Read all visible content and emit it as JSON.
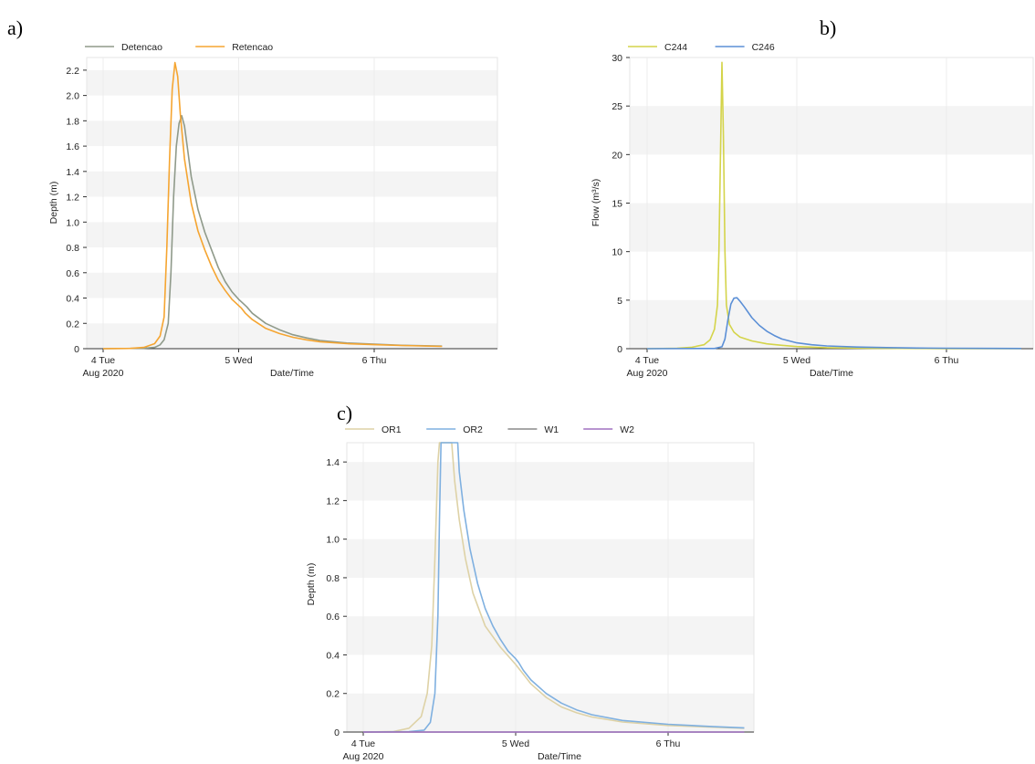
{
  "chart_data": [
    {
      "panel": "a)",
      "type": "line",
      "xlabel": "Date/Time",
      "ylabel": "Depth (m)",
      "x_ticks": [
        "4 Tue",
        "5 Wed",
        "6 Thu"
      ],
      "x_subtick": "Aug 2020",
      "x_range_days": [
        0,
        2.5
      ],
      "ylim": [
        0,
        2.3
      ],
      "y_ticks": [
        0,
        0.2,
        0.4,
        0.6,
        0.8,
        1.0,
        1.2,
        1.4,
        1.6,
        1.8,
        2.0,
        2.2
      ],
      "y_tick_labels": [
        "0",
        "0.2",
        "0.4",
        "0.6",
        "0.8",
        "1.0",
        "1.2",
        "1.4",
        "1.6",
        "1.8",
        "2.0",
        "2.2"
      ],
      "legend_position": "top-left",
      "series": [
        {
          "name": "Detencao",
          "color": "#8f9a8a",
          "points": [
            [
              0,
              0
            ],
            [
              0.3,
              0.003
            ],
            [
              0.38,
              0.01
            ],
            [
              0.42,
              0.03
            ],
            [
              0.45,
              0.07
            ],
            [
              0.48,
              0.2
            ],
            [
              0.5,
              0.6
            ],
            [
              0.52,
              1.2
            ],
            [
              0.54,
              1.6
            ],
            [
              0.56,
              1.78
            ],
            [
              0.58,
              1.84
            ],
            [
              0.6,
              1.76
            ],
            [
              0.62,
              1.6
            ],
            [
              0.65,
              1.36
            ],
            [
              0.7,
              1.1
            ],
            [
              0.75,
              0.92
            ],
            [
              0.8,
              0.78
            ],
            [
              0.85,
              0.64
            ],
            [
              0.9,
              0.53
            ],
            [
              0.95,
              0.45
            ],
            [
              1.0,
              0.39
            ],
            [
              1.03,
              0.36
            ],
            [
              1.06,
              0.33
            ],
            [
              1.1,
              0.28
            ],
            [
              1.2,
              0.2
            ],
            [
              1.3,
              0.15
            ],
            [
              1.4,
              0.11
            ],
            [
              1.5,
              0.085
            ],
            [
              1.6,
              0.065
            ],
            [
              1.8,
              0.045
            ],
            [
              2.0,
              0.035
            ],
            [
              2.2,
              0.027
            ],
            [
              2.5,
              0.02
            ]
          ]
        },
        {
          "name": "Retencao",
          "color": "#f5a531",
          "points": [
            [
              0,
              0
            ],
            [
              0.2,
              0.002
            ],
            [
              0.3,
              0.01
            ],
            [
              0.38,
              0.04
            ],
            [
              0.42,
              0.1
            ],
            [
              0.45,
              0.25
            ],
            [
              0.47,
              0.8
            ],
            [
              0.49,
              1.5
            ],
            [
              0.51,
              2.05
            ],
            [
              0.53,
              2.26
            ],
            [
              0.55,
              2.15
            ],
            [
              0.57,
              1.85
            ],
            [
              0.6,
              1.5
            ],
            [
              0.65,
              1.15
            ],
            [
              0.7,
              0.93
            ],
            [
              0.75,
              0.78
            ],
            [
              0.8,
              0.65
            ],
            [
              0.85,
              0.54
            ],
            [
              0.9,
              0.46
            ],
            [
              0.95,
              0.39
            ],
            [
              1.0,
              0.34
            ],
            [
              1.02,
              0.32
            ],
            [
              1.05,
              0.28
            ],
            [
              1.1,
              0.23
            ],
            [
              1.2,
              0.16
            ],
            [
              1.3,
              0.12
            ],
            [
              1.4,
              0.09
            ],
            [
              1.5,
              0.07
            ],
            [
              1.6,
              0.055
            ],
            [
              1.8,
              0.04
            ],
            [
              2.0,
              0.032
            ],
            [
              2.2,
              0.025
            ],
            [
              2.5,
              0.018
            ]
          ]
        }
      ]
    },
    {
      "panel": "b)",
      "type": "line",
      "xlabel": "Date/Time",
      "ylabel": "Flow (m³/s)",
      "x_ticks": [
        "4 Tue",
        "5 Wed",
        "6 Thu"
      ],
      "x_subtick": "Aug 2020",
      "x_range_days": [
        0,
        2.5
      ],
      "ylim": [
        0,
        30
      ],
      "y_ticks": [
        0,
        5,
        10,
        15,
        20,
        25,
        30
      ],
      "y_tick_labels": [
        "0",
        "5",
        "10",
        "15",
        "20",
        "25",
        "30"
      ],
      "legend_position": "top-left",
      "series": [
        {
          "name": "C244",
          "color": "#d4d44a",
          "points": [
            [
              0,
              0
            ],
            [
              0.2,
              0.05
            ],
            [
              0.3,
              0.15
            ],
            [
              0.38,
              0.4
            ],
            [
              0.42,
              0.9
            ],
            [
              0.45,
              2.0
            ],
            [
              0.47,
              4.5
            ],
            [
              0.48,
              10
            ],
            [
              0.49,
              20
            ],
            [
              0.5,
              29.5
            ],
            [
              0.51,
              22
            ],
            [
              0.52,
              10
            ],
            [
              0.53,
              4.5
            ],
            [
              0.55,
              2.5
            ],
            [
              0.58,
              1.7
            ],
            [
              0.62,
              1.2
            ],
            [
              0.7,
              0.8
            ],
            [
              0.8,
              0.5
            ],
            [
              0.9,
              0.35
            ],
            [
              1.0,
              0.22
            ],
            [
              1.2,
              0.1
            ],
            [
              1.5,
              0.04
            ],
            [
              2.0,
              0.01
            ],
            [
              2.5,
              0
            ]
          ]
        },
        {
          "name": "C246",
          "color": "#5b8fd6",
          "points": [
            [
              0,
              0
            ],
            [
              0.45,
              0.02
            ],
            [
              0.5,
              0.2
            ],
            [
              0.52,
              1.0
            ],
            [
              0.54,
              3.0
            ],
            [
              0.56,
              4.6
            ],
            [
              0.58,
              5.2
            ],
            [
              0.6,
              5.25
            ],
            [
              0.62,
              4.9
            ],
            [
              0.65,
              4.3
            ],
            [
              0.7,
              3.2
            ],
            [
              0.75,
              2.4
            ],
            [
              0.8,
              1.8
            ],
            [
              0.85,
              1.35
            ],
            [
              0.9,
              1.0
            ],
            [
              1.0,
              0.6
            ],
            [
              1.1,
              0.4
            ],
            [
              1.2,
              0.28
            ],
            [
              1.4,
              0.17
            ],
            [
              1.6,
              0.11
            ],
            [
              1.8,
              0.07
            ],
            [
              2.0,
              0.05
            ],
            [
              2.3,
              0.03
            ],
            [
              2.5,
              0.02
            ]
          ]
        }
      ]
    },
    {
      "panel": "c)",
      "type": "line",
      "xlabel": "Date/Time",
      "ylabel": "Depth (m)",
      "x_ticks": [
        "4 Tue",
        "5 Wed",
        "6 Thu"
      ],
      "x_subtick": "Aug 2020",
      "x_range_days": [
        0,
        2.5
      ],
      "ylim": [
        0,
        1.5
      ],
      "y_ticks": [
        0,
        0.2,
        0.4,
        0.6,
        0.8,
        1.0,
        1.2,
        1.4
      ],
      "y_tick_labels": [
        "0",
        "0.2",
        "0.4",
        "0.6",
        "0.8",
        "1.0",
        "1.2",
        "1.4"
      ],
      "legend_position": "top-left",
      "series": [
        {
          "name": "OR1",
          "color": "#ded2a6",
          "points": [
            [
              0,
              0
            ],
            [
              0.2,
              0.003
            ],
            [
              0.3,
              0.02
            ],
            [
              0.38,
              0.08
            ],
            [
              0.42,
              0.2
            ],
            [
              0.45,
              0.45
            ],
            [
              0.47,
              0.9
            ],
            [
              0.49,
              1.4
            ],
            [
              0.5,
              1.5
            ],
            [
              0.58,
              1.5
            ],
            [
              0.6,
              1.3
            ],
            [
              0.63,
              1.1
            ],
            [
              0.67,
              0.9
            ],
            [
              0.72,
              0.72
            ],
            [
              0.8,
              0.55
            ],
            [
              0.9,
              0.44
            ],
            [
              1.0,
              0.35
            ],
            [
              1.05,
              0.3
            ],
            [
              1.1,
              0.25
            ],
            [
              1.2,
              0.18
            ],
            [
              1.3,
              0.13
            ],
            [
              1.4,
              0.1
            ],
            [
              1.5,
              0.078
            ],
            [
              1.7,
              0.052
            ],
            [
              2.0,
              0.034
            ],
            [
              2.3,
              0.025
            ],
            [
              2.5,
              0.02
            ]
          ]
        },
        {
          "name": "OR2",
          "color": "#7fb0e0",
          "points": [
            [
              0,
              0
            ],
            [
              0.3,
              0.002
            ],
            [
              0.4,
              0.01
            ],
            [
              0.44,
              0.05
            ],
            [
              0.47,
              0.2
            ],
            [
              0.49,
              0.6
            ],
            [
              0.5,
              1.1
            ],
            [
              0.51,
              1.5
            ],
            [
              0.62,
              1.5
            ],
            [
              0.63,
              1.35
            ],
            [
              0.66,
              1.15
            ],
            [
              0.7,
              0.95
            ],
            [
              0.75,
              0.77
            ],
            [
              0.8,
              0.64
            ],
            [
              0.85,
              0.55
            ],
            [
              0.9,
              0.48
            ],
            [
              0.95,
              0.42
            ],
            [
              1.0,
              0.38
            ],
            [
              1.02,
              0.36
            ],
            [
              1.05,
              0.32
            ],
            [
              1.1,
              0.27
            ],
            [
              1.2,
              0.2
            ],
            [
              1.3,
              0.15
            ],
            [
              1.4,
              0.115
            ],
            [
              1.5,
              0.09
            ],
            [
              1.7,
              0.06
            ],
            [
              2.0,
              0.04
            ],
            [
              2.3,
              0.028
            ],
            [
              2.5,
              0.022
            ]
          ]
        },
        {
          "name": "W1",
          "color": "#8a8a8a",
          "points": [
            [
              0,
              0
            ],
            [
              2.5,
              0
            ]
          ]
        },
        {
          "name": "W2",
          "color": "#a070c0",
          "points": [
            [
              0,
              0
            ],
            [
              2.5,
              0
            ]
          ]
        }
      ]
    }
  ]
}
